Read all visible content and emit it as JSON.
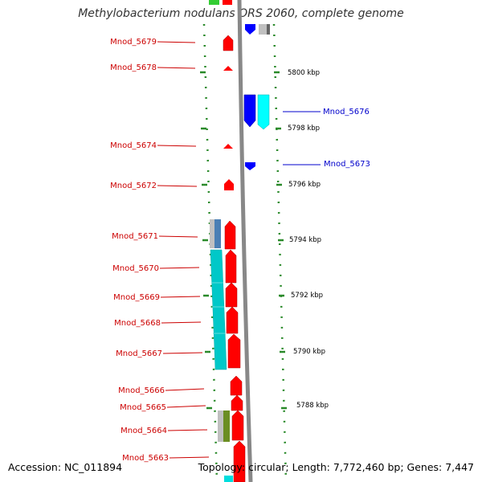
{
  "title": "Methylobacterium nodulans ORS 2060, complete genome",
  "footer": {
    "accession": "Accession: NC_011894",
    "summary": "Topology: circular; Length: 7,772,460 bp; Genes: 7,447"
  },
  "colors": {
    "left_labels": "#cc0000",
    "right_labels": "#0000cc",
    "forward_strand": "#ff0000",
    "reverse_strand": "#0000ff",
    "ruler": "#2a8a2a",
    "backbone": "#888888"
  },
  "scale_labels": [
    {
      "text": "5800 kbp"
    },
    {
      "text": "5798 kbp"
    },
    {
      "text": "5796 kbp"
    },
    {
      "text": "5794 kbp"
    },
    {
      "text": "5792 kbp"
    },
    {
      "text": "5790 kbp"
    },
    {
      "text": "5788 kbp"
    }
  ],
  "gene_labels_left": [
    {
      "text": "Mnod_5679"
    },
    {
      "text": "Mnod_5678"
    },
    {
      "text": "Mnod_5674"
    },
    {
      "text": "Mnod_5672"
    },
    {
      "text": "Mnod_5671"
    },
    {
      "text": "Mnod_5670"
    },
    {
      "text": "Mnod_5669"
    },
    {
      "text": "Mnod_5668"
    },
    {
      "text": "Mnod_5667"
    },
    {
      "text": "Mnod_5666"
    },
    {
      "text": "Mnod_5665"
    },
    {
      "text": "Mnod_5664"
    },
    {
      "text": "Mnod_5663"
    }
  ],
  "gene_labels_right": [
    {
      "text": "Mnod_5676"
    },
    {
      "text": "Mnod_5673"
    }
  ]
}
